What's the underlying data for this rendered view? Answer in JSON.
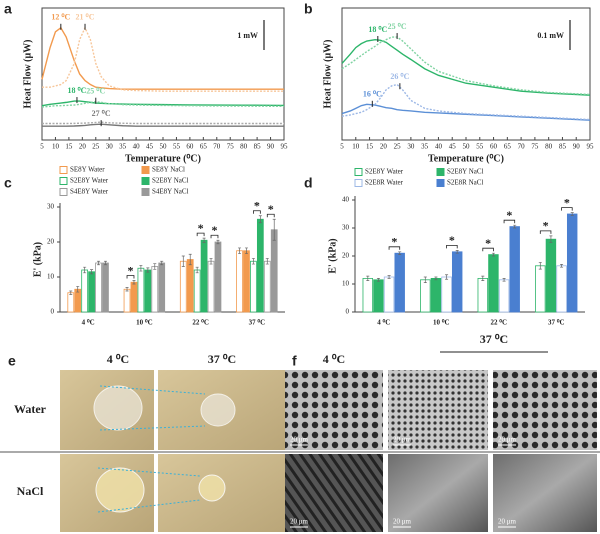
{
  "chart_data": [
    {
      "type": "line",
      "label": "a",
      "x_label": "Temperature (⁰C)",
      "y_label": "Heat Flow (μW)",
      "scale_bar": "1 mW",
      "x": [
        5,
        8,
        10,
        12,
        14,
        17,
        19,
        21,
        23,
        25,
        27,
        30,
        35,
        40,
        50,
        60,
        70,
        80,
        95
      ],
      "xlim": [
        5,
        95
      ],
      "xticks": [
        5,
        10,
        15,
        20,
        25,
        30,
        35,
        40,
        45,
        50,
        55,
        60,
        65,
        70,
        75,
        80,
        85,
        90,
        95
      ],
      "ylim": [
        0,
        10
      ],
      "series": [
        {
          "color": "#f29a4e",
          "dashed": false,
          "values": [
            4.6,
            7.0,
            8.2,
            8.5,
            7.8,
            6.0,
            5.0,
            4.5,
            4.2,
            4.0,
            3.95,
            3.9,
            3.85,
            3.85,
            3.85,
            3.85,
            3.85,
            3.85,
            3.85
          ]
        },
        {
          "color": "#f7c69a",
          "dashed": true,
          "values": [
            4.0,
            4.0,
            4.1,
            4.2,
            4.5,
            5.8,
            7.6,
            8.5,
            7.6,
            5.8,
            4.8,
            4.1,
            3.8,
            3.75,
            3.7,
            3.7,
            3.7,
            3.7,
            3.7
          ]
        },
        {
          "color": "#2db56a",
          "dashed": false,
          "values": [
            2.6,
            2.7,
            2.75,
            2.8,
            2.85,
            2.95,
            2.95,
            2.9,
            2.85,
            2.8,
            2.78,
            2.75,
            2.72,
            2.7,
            2.68,
            2.66,
            2.65,
            2.64,
            2.62
          ]
        },
        {
          "color": "#80d3a2",
          "dashed": true,
          "values": [
            2.5,
            2.55,
            2.6,
            2.6,
            2.62,
            2.65,
            2.7,
            2.78,
            2.85,
            2.9,
            2.85,
            2.75,
            2.68,
            2.65,
            2.62,
            2.6,
            2.58,
            2.57,
            2.55
          ]
        },
        {
          "color": "#777777",
          "dashed": false,
          "values": [
            1.05,
            1.05,
            1.05,
            1.05,
            1.05,
            1.06,
            1.08,
            1.1,
            1.15,
            1.18,
            1.2,
            1.15,
            1.08,
            1.05,
            1.05,
            1.05,
            1.05,
            1.05,
            1.05
          ]
        },
        {
          "color": "#aaaaaa",
          "dashed": true,
          "values": [
            1.25,
            1.25,
            1.25,
            1.25,
            1.25,
            1.26,
            1.27,
            1.28,
            1.3,
            1.33,
            1.35,
            1.3,
            1.27,
            1.25,
            1.25,
            1.25,
            1.25,
            1.25,
            1.25
          ]
        }
      ],
      "annotations": [
        {
          "label": "12 ⁰C",
          "x": 12,
          "series": 0
        },
        {
          "label": "21 ⁰C",
          "x": 21,
          "series": 1
        },
        {
          "label": "18 ⁰C",
          "x": 18,
          "series": 2
        },
        {
          "label": "25 ⁰C",
          "x": 25,
          "series": 3
        },
        {
          "label": "27 ⁰C",
          "x": 27,
          "series": 4
        }
      ]
    },
    {
      "type": "line",
      "label": "b",
      "x_label": "Temperature (⁰C)",
      "y_label": "Heat Flow (μW)",
      "scale_bar": "0.1 mW",
      "x": [
        5,
        8,
        10,
        12,
        14,
        17,
        19,
        21,
        23,
        25,
        27,
        30,
        35,
        40,
        50,
        60,
        70,
        80,
        95
      ],
      "xlim": [
        5,
        95
      ],
      "xticks": [
        5,
        10,
        15,
        20,
        25,
        30,
        35,
        40,
        45,
        50,
        55,
        60,
        65,
        70,
        75,
        80,
        85,
        90,
        95
      ],
      "ylim": [
        0,
        10
      ],
      "series": [
        {
          "color": "#2db56a",
          "dashed": false,
          "values": [
            5.8,
            6.5,
            7.0,
            7.3,
            7.5,
            7.6,
            7.55,
            7.4,
            7.1,
            6.8,
            6.5,
            6.1,
            5.4,
            4.9,
            4.3,
            4.0,
            3.7,
            3.55,
            3.4
          ]
        },
        {
          "color": "#80d3a2",
          "dashed": true,
          "values": [
            5.4,
            5.8,
            6.1,
            6.4,
            6.7,
            7.1,
            7.4,
            7.6,
            7.8,
            7.8,
            7.5,
            6.9,
            5.9,
            5.2,
            4.5,
            4.1,
            3.8,
            3.6,
            3.45
          ]
        },
        {
          "color": "#5b8fd6",
          "dashed": false,
          "values": [
            2.0,
            2.2,
            2.4,
            2.6,
            2.7,
            2.65,
            2.55,
            2.45,
            2.4,
            2.3,
            2.25,
            2.2,
            2.1,
            2.05,
            1.95,
            1.85,
            1.75,
            1.65,
            1.5
          ]
        },
        {
          "color": "#9db8e6",
          "dashed": true,
          "values": [
            1.8,
            1.9,
            2.0,
            2.1,
            2.3,
            2.7,
            3.2,
            3.8,
            4.1,
            4.2,
            3.8,
            3.0,
            2.4,
            2.2,
            2.0,
            1.9,
            1.8,
            1.7,
            1.55
          ]
        }
      ],
      "annotations": [
        {
          "label": "18 ⁰C",
          "x": 18,
          "series": 0
        },
        {
          "label": "25 ⁰C",
          "x": 25,
          "series": 1
        },
        {
          "label": "16 ⁰C",
          "x": 16,
          "series": 2
        },
        {
          "label": "26 ⁰C",
          "x": 26,
          "series": 3
        }
      ]
    },
    {
      "type": "bar",
      "label": "c",
      "y_label": "E' (kPa)",
      "categories": [
        "4 ⁰C",
        "10 ⁰C",
        "22 ⁰C",
        "37 ⁰C"
      ],
      "ylim": [
        0,
        30
      ],
      "yticks": [
        0,
        10,
        20,
        30
      ],
      "series": [
        {
          "name": "SE8Y Water",
          "color": "#f29a4e",
          "hollow": true,
          "values": [
            5.5,
            6.5,
            14.5,
            17.5
          ],
          "errors": [
            0.5,
            0.5,
            1.5,
            0.8
          ]
        },
        {
          "name": "SE8Y NaCl",
          "color": "#f29a4e",
          "hollow": false,
          "values": [
            6.5,
            8.5,
            15,
            17.5
          ],
          "errors": [
            0.8,
            0.5,
            1.5,
            0.8
          ]
        },
        {
          "name": "S2E8Y Water",
          "color": "#2db56a",
          "hollow": true,
          "values": [
            12,
            12.5,
            12,
            14.5
          ],
          "errors": [
            0.8,
            0.8,
            0.8,
            0.8
          ]
        },
        {
          "name": "S2E8Y NaCl",
          "color": "#2db56a",
          "hollow": false,
          "values": [
            11.5,
            12,
            20.5,
            26.5
          ],
          "errors": [
            0.6,
            0.6,
            0.6,
            1.0
          ]
        },
        {
          "name": "S4E8Y Water",
          "color": "#999999",
          "hollow": true,
          "values": [
            14,
            13,
            14.5,
            14.5
          ],
          "errors": [
            0.5,
            0.8,
            0.8,
            0.8
          ]
        },
        {
          "name": "S4E8Y NaCl",
          "color": "#999999",
          "hollow": false,
          "values": [
            14,
            14,
            20,
            23.5
          ],
          "errors": [
            0.5,
            0.5,
            0.5,
            3.0
          ]
        }
      ],
      "significance": [
        {
          "label": "*",
          "category": "10 ⁰C",
          "series": [
            "SE8Y Water",
            "SE8Y NaCl"
          ]
        },
        {
          "label": "*",
          "category": "22 ⁰C",
          "series": [
            "S2E8Y Water",
            "S2E8Y NaCl"
          ]
        },
        {
          "label": "*",
          "category": "22 ⁰C",
          "series": [
            "S4E8Y Water",
            "S4E8Y NaCl"
          ]
        },
        {
          "label": "*",
          "category": "37 ⁰C",
          "series": [
            "S2E8Y Water",
            "S2E8Y NaCl"
          ]
        },
        {
          "label": "*",
          "category": "37 ⁰C",
          "series": [
            "S4E8Y Water",
            "S4E8Y NaCl"
          ]
        }
      ]
    },
    {
      "type": "bar",
      "label": "d",
      "y_label": "E' (kPa)",
      "categories": [
        "4 ⁰C",
        "10 ⁰C",
        "22 ⁰C",
        "37 ⁰C"
      ],
      "ylim": [
        0,
        40
      ],
      "yticks": [
        0,
        10,
        20,
        30,
        40
      ],
      "series": [
        {
          "name": "S2E8Y Water",
          "color": "#2db56a",
          "hollow": true,
          "values": [
            12,
            11.5,
            12,
            16.5
          ],
          "errors": [
            0.8,
            1.0,
            0.8,
            1.2
          ]
        },
        {
          "name": "S2E8Y NaCl",
          "color": "#2db56a",
          "hollow": false,
          "values": [
            11.5,
            12,
            20.5,
            26
          ],
          "errors": [
            0.5,
            0.5,
            0.5,
            1.2
          ]
        },
        {
          "name": "S2E8R Water",
          "color": "#9db8e6",
          "hollow": true,
          "values": [
            12.5,
            12.5,
            11.5,
            16.5
          ],
          "errors": [
            0.5,
            0.8,
            0.5,
            0.5
          ]
        },
        {
          "name": "S2E8R NaCl",
          "color": "#4a7fd0",
          "hollow": false,
          "values": [
            21,
            21.5,
            30.5,
            35
          ],
          "errors": [
            0.5,
            0.5,
            0.5,
            0.5
          ]
        }
      ],
      "significance": [
        {
          "label": "*",
          "category": "4 ⁰C",
          "series": [
            "S2E8R Water",
            "S2E8R NaCl"
          ]
        },
        {
          "label": "*",
          "category": "10 ⁰C",
          "series": [
            "S2E8R Water",
            "S2E8R NaCl"
          ]
        },
        {
          "label": "*",
          "category": "22 ⁰C",
          "series": [
            "S2E8Y Water",
            "S2E8Y NaCl"
          ]
        },
        {
          "label": "*",
          "category": "22 ⁰C",
          "series": [
            "S2E8R Water",
            "S2E8R NaCl"
          ]
        },
        {
          "label": "*",
          "category": "37 ⁰C",
          "series": [
            "S2E8Y Water",
            "S2E8Y NaCl"
          ]
        },
        {
          "label": "*",
          "category": "37 ⁰C",
          "series": [
            "S2E8R Water",
            "S2E8R NaCl"
          ]
        }
      ]
    }
  ],
  "panels": {
    "e": {
      "label": "e",
      "columns": [
        "4 ⁰C",
        "37 ⁰C"
      ],
      "rows": [
        "Water",
        "NaCl"
      ]
    },
    "f": {
      "label": "f",
      "columns": [
        "4 ⁰C",
        "37 ⁰C"
      ],
      "scale_bar": "20 μm"
    }
  }
}
